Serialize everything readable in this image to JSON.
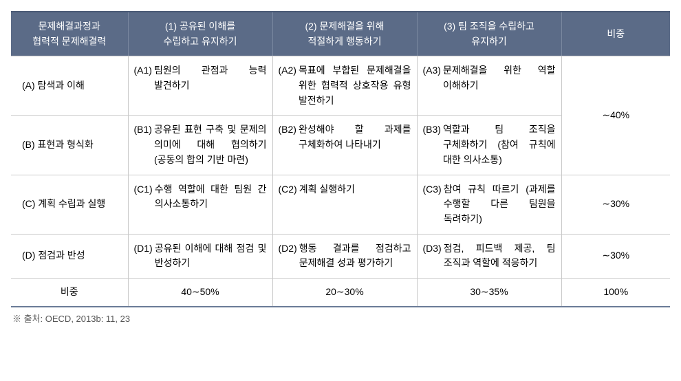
{
  "headers": {
    "h0a": "문제해결과정과",
    "h0b": "협력적 문제해결력",
    "h1a": "(1) 공유된 이해를",
    "h1b": "수립하고 유지하기",
    "h2a": "(2) 문제해결을 위해",
    "h2b": "적절하게 행동하기",
    "h3a": "(3) 팀 조직을 수립하고",
    "h3b": "유지하기",
    "h4": "비중"
  },
  "rows": [
    {
      "label": "(A) 탐색과 이해",
      "c1tag": "(A1)",
      "c1txt": "팀원의 관점과 능력 발견하기",
      "c2tag": "(A2)",
      "c2txt": "목표에 부합된 문제해결을 위한 협력적 상호작용 유형 발전하기",
      "c3tag": "(A3)",
      "c3txt": "문제해결을 위한 역할 이해하기"
    },
    {
      "label": "(B) 표현과 형식화",
      "c1tag": "(B1)",
      "c1txt": "공유된 표현 구축 및 문제의 의미에 대해 협의하기 (공동의 합의 기반 마련)",
      "c2tag": "(B2)",
      "c2txt": "완성해야 할 과제를 구체화하여 나타내기",
      "c3tag": "(B3)",
      "c3txt": "역할과 팀 조직을 구체화하기\n(참여 규칙에 대한 의사소통)"
    },
    {
      "label": "(C) 계획 수립과 실행",
      "c1tag": "(C1)",
      "c1txt": "수행 역할에 대한 팀원 간 의사소통하기",
      "c2tag": "(C2)",
      "c2txt": "계획 실행하기",
      "c3tag": "(C3)",
      "c3txt": "참여 규칙 따르기 (과제를 수행할 다른 팀원을 독려하기)",
      "ratio": "∼30%"
    },
    {
      "label": "(D) 점검과 반성",
      "c1tag": "(D1)",
      "c1txt": "공유된 이해에 대해 점검 및 반성하기",
      "c2tag": "(D2)",
      "c2txt": "행동 결과를 점검하고 문제해결 성과 평가하기",
      "c3tag": "(D3)",
      "c3txt": "점검, 피드백 제공, 팀 조직과 역할에 적응하기",
      "ratio": "∼30%"
    }
  ],
  "mergedRatioAB": "∼40%",
  "weightRow": {
    "label": "비중",
    "w1": "40∼50%",
    "w2": "20∼30%",
    "w3": "30∼35%",
    "w4": "100%"
  },
  "source": "※ 출처: OECD, 2013b: 11, 23"
}
